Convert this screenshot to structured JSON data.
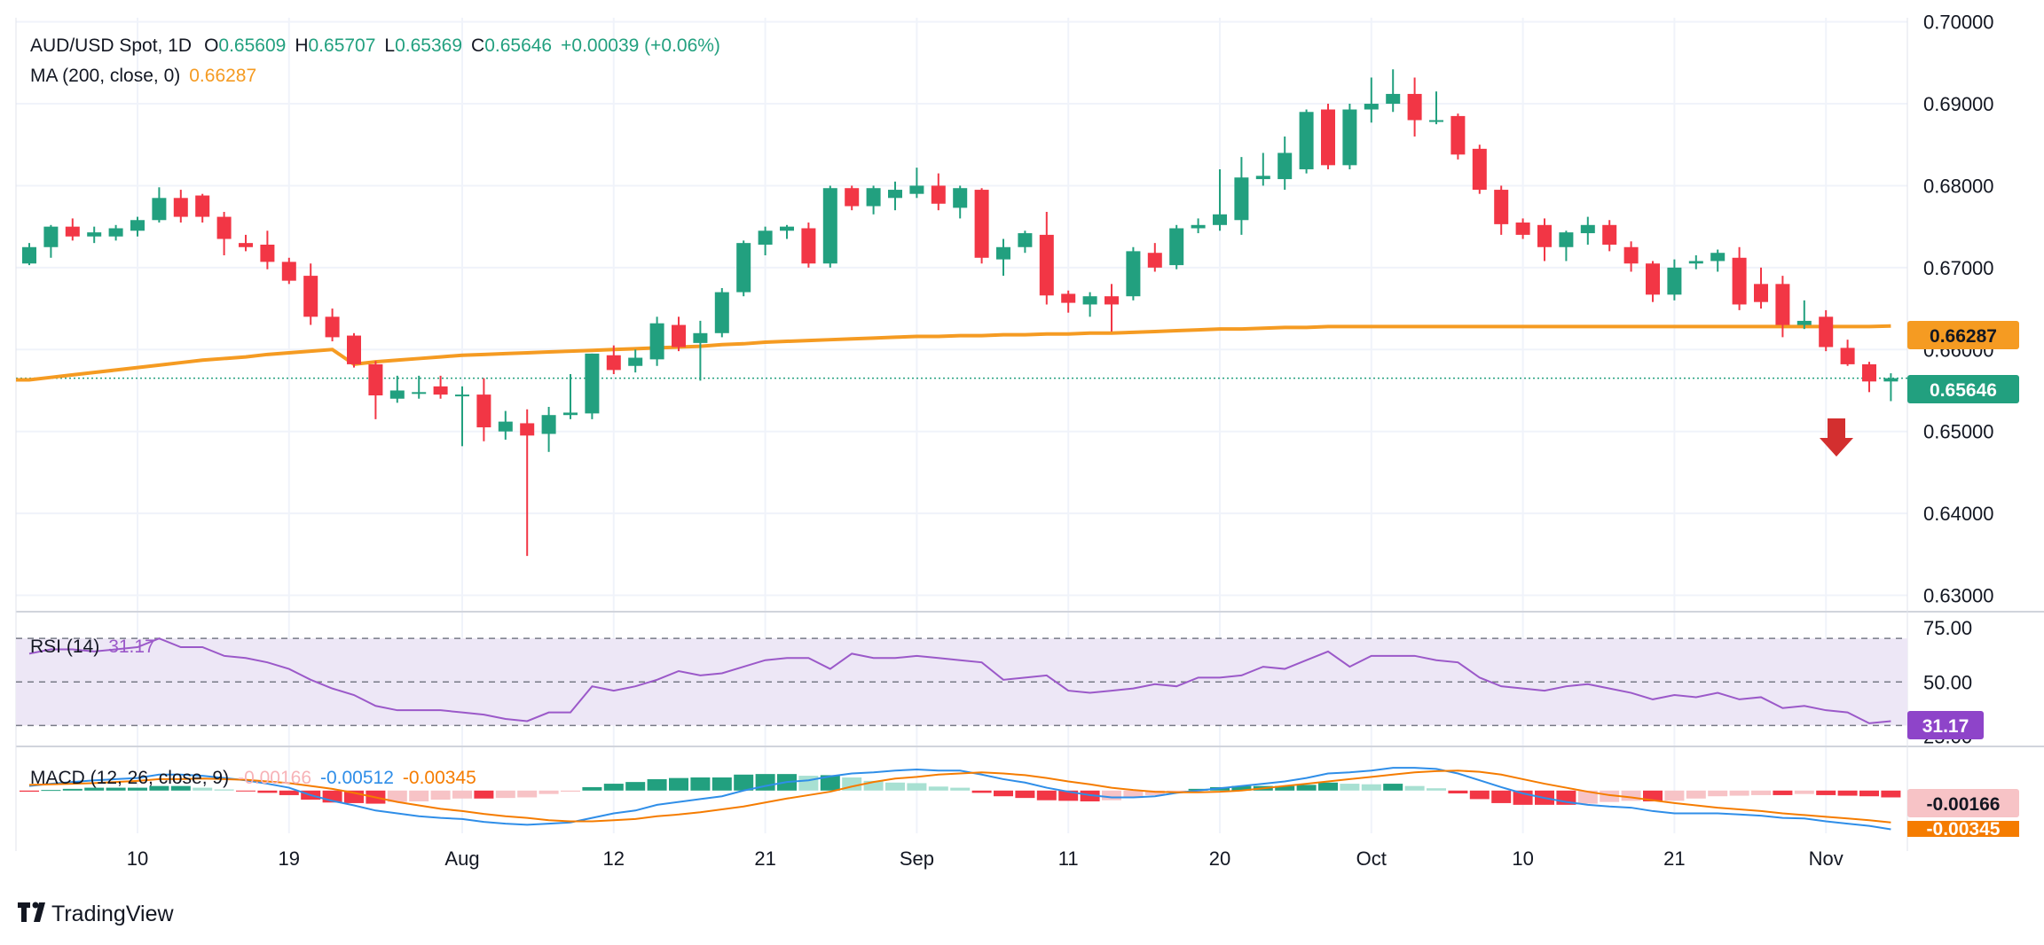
{
  "header": {
    "symbol": "AUD/USD Spot, 1D",
    "o_label": "O",
    "o_value": "0.65609",
    "h_label": "H",
    "h_value": "0.65707",
    "l_label": "L",
    "l_value": "0.65369",
    "c_label": "C",
    "c_value": "0.65646",
    "change": "+0.00039 (+0.06%)",
    "ma_label": "MA (200, close, 0)",
    "ma_value": "0.66287"
  },
  "colors": {
    "up": "#22a07f",
    "down": "#f23645",
    "ma": "#f59b22",
    "rsi": "#9b59c9",
    "rsi_band": "#ede7f6",
    "macd_line": "#2f8ee8",
    "signal_line": "#f57c00",
    "hist_up_strong": "#22a07f",
    "hist_up_weak": "#a8e0d2",
    "hist_down_strong": "#f23645",
    "hist_down_weak": "#f7c3c6",
    "grid": "#f0f3fa",
    "text": "#131722"
  },
  "price_badges": {
    "ma": "0.66287",
    "last": "0.65646"
  },
  "rsi_header": {
    "label": "RSI (14)",
    "value": "31.17"
  },
  "rsi_badge": "31.17",
  "macd_header": {
    "label": "MACD (12, 26, close, 9)",
    "hist": "-0.00166",
    "macd": "-0.00512",
    "signal": "-0.00345"
  },
  "macd_badges": {
    "hist": "-0.00166",
    "signal": "-0.00345"
  },
  "brand": {
    "name": "TradingView"
  },
  "chart_data": [
    {
      "type": "candlestick",
      "title": "AUD/USD Spot, 1D",
      "ylim": [
        0.628,
        0.7005
      ],
      "y_ticks": [
        "0.70000",
        "0.69000",
        "0.68000",
        "0.67000",
        "0.66000",
        "0.65000",
        "0.64000",
        "0.63000"
      ],
      "y_tick_values": [
        0.7,
        0.69,
        0.68,
        0.67,
        0.66,
        0.65,
        0.64,
        0.63
      ],
      "x_ticks": [
        "10",
        "19",
        "Aug",
        "12",
        "21",
        "Sep",
        "11",
        "20",
        "Oct",
        "10",
        "21",
        "Nov"
      ],
      "x_tick_positions": [
        5,
        12,
        20,
        27,
        34,
        41,
        48,
        55,
        62,
        69,
        76,
        83
      ],
      "grid": true,
      "candles": [
        {
          "o": 0.6705,
          "h": 0.673,
          "l": 0.6703,
          "c": 0.6725
        },
        {
          "o": 0.6725,
          "h": 0.6752,
          "l": 0.6712,
          "c": 0.675
        },
        {
          "o": 0.675,
          "h": 0.676,
          "l": 0.6733,
          "c": 0.6738
        },
        {
          "o": 0.6738,
          "h": 0.675,
          "l": 0.673,
          "c": 0.6743
        },
        {
          "o": 0.6738,
          "h": 0.6752,
          "l": 0.6733,
          "c": 0.6748
        },
        {
          "o": 0.6745,
          "h": 0.6762,
          "l": 0.6738,
          "c": 0.6758
        },
        {
          "o": 0.6758,
          "h": 0.6798,
          "l": 0.6755,
          "c": 0.6785
        },
        {
          "o": 0.6785,
          "h": 0.6795,
          "l": 0.6755,
          "c": 0.6762
        },
        {
          "o": 0.6788,
          "h": 0.679,
          "l": 0.6755,
          "c": 0.6762
        },
        {
          "o": 0.6762,
          "h": 0.6768,
          "l": 0.6715,
          "c": 0.6735
        },
        {
          "o": 0.673,
          "h": 0.674,
          "l": 0.672,
          "c": 0.6725
        },
        {
          "o": 0.6728,
          "h": 0.6745,
          "l": 0.6698,
          "c": 0.6707
        },
        {
          "o": 0.6707,
          "h": 0.6712,
          "l": 0.668,
          "c": 0.6684
        },
        {
          "o": 0.669,
          "h": 0.6705,
          "l": 0.663,
          "c": 0.664
        },
        {
          "o": 0.664,
          "h": 0.665,
          "l": 0.661,
          "c": 0.6615
        },
        {
          "o": 0.6617,
          "h": 0.662,
          "l": 0.6578,
          "c": 0.6582
        },
        {
          "o": 0.6582,
          "h": 0.6586,
          "l": 0.6515,
          "c": 0.6544
        },
        {
          "o": 0.654,
          "h": 0.6568,
          "l": 0.6535,
          "c": 0.655
        },
        {
          "o": 0.6548,
          "h": 0.6568,
          "l": 0.654,
          "c": 0.6548
        },
        {
          "o": 0.6555,
          "h": 0.6568,
          "l": 0.654,
          "c": 0.6545
        },
        {
          "o": 0.6545,
          "h": 0.6555,
          "l": 0.6482,
          "c": 0.6545
        },
        {
          "o": 0.6545,
          "h": 0.6565,
          "l": 0.6488,
          "c": 0.6505
        },
        {
          "o": 0.65,
          "h": 0.6525,
          "l": 0.649,
          "c": 0.6512
        },
        {
          "o": 0.651,
          "h": 0.6527,
          "l": 0.6348,
          "c": 0.6495
        },
        {
          "o": 0.6497,
          "h": 0.653,
          "l": 0.6475,
          "c": 0.652
        },
        {
          "o": 0.652,
          "h": 0.657,
          "l": 0.6515,
          "c": 0.6523
        },
        {
          "o": 0.6522,
          "h": 0.6595,
          "l": 0.6515,
          "c": 0.6595
        },
        {
          "o": 0.6593,
          "h": 0.6605,
          "l": 0.657,
          "c": 0.6575
        },
        {
          "o": 0.658,
          "h": 0.66,
          "l": 0.6572,
          "c": 0.659
        },
        {
          "o": 0.6588,
          "h": 0.664,
          "l": 0.658,
          "c": 0.6632
        },
        {
          "o": 0.663,
          "h": 0.664,
          "l": 0.6598,
          "c": 0.6603
        },
        {
          "o": 0.6608,
          "h": 0.6635,
          "l": 0.6562,
          "c": 0.662
        },
        {
          "o": 0.662,
          "h": 0.6675,
          "l": 0.6615,
          "c": 0.667
        },
        {
          "o": 0.667,
          "h": 0.6733,
          "l": 0.6665,
          "c": 0.673
        },
        {
          "o": 0.6728,
          "h": 0.675,
          "l": 0.6715,
          "c": 0.6745
        },
        {
          "o": 0.6745,
          "h": 0.6752,
          "l": 0.6735,
          "c": 0.675
        },
        {
          "o": 0.6748,
          "h": 0.6755,
          "l": 0.67,
          "c": 0.6705
        },
        {
          "o": 0.6705,
          "h": 0.68,
          "l": 0.67,
          "c": 0.6797
        },
        {
          "o": 0.6797,
          "h": 0.68,
          "l": 0.677,
          "c": 0.6775
        },
        {
          "o": 0.6775,
          "h": 0.68,
          "l": 0.6765,
          "c": 0.6797
        },
        {
          "o": 0.6785,
          "h": 0.6805,
          "l": 0.677,
          "c": 0.6795
        },
        {
          "o": 0.679,
          "h": 0.6822,
          "l": 0.6785,
          "c": 0.68
        },
        {
          "o": 0.68,
          "h": 0.6815,
          "l": 0.677,
          "c": 0.6778
        },
        {
          "o": 0.6773,
          "h": 0.68,
          "l": 0.676,
          "c": 0.6797
        },
        {
          "o": 0.6795,
          "h": 0.6797,
          "l": 0.6705,
          "c": 0.6712
        },
        {
          "o": 0.671,
          "h": 0.6735,
          "l": 0.669,
          "c": 0.6725
        },
        {
          "o": 0.6725,
          "h": 0.6745,
          "l": 0.6718,
          "c": 0.6742
        },
        {
          "o": 0.674,
          "h": 0.6768,
          "l": 0.6655,
          "c": 0.6666
        },
        {
          "o": 0.6668,
          "h": 0.6672,
          "l": 0.6645,
          "c": 0.6657
        },
        {
          "o": 0.6655,
          "h": 0.667,
          "l": 0.664,
          "c": 0.6665
        },
        {
          "o": 0.6665,
          "h": 0.668,
          "l": 0.6622,
          "c": 0.6655
        },
        {
          "o": 0.6665,
          "h": 0.6725,
          "l": 0.666,
          "c": 0.672
        },
        {
          "o": 0.6718,
          "h": 0.673,
          "l": 0.6695,
          "c": 0.67
        },
        {
          "o": 0.6703,
          "h": 0.6752,
          "l": 0.6698,
          "c": 0.6748
        },
        {
          "o": 0.6748,
          "h": 0.676,
          "l": 0.6742,
          "c": 0.6752
        },
        {
          "o": 0.6752,
          "h": 0.682,
          "l": 0.6745,
          "c": 0.6765
        },
        {
          "o": 0.6758,
          "h": 0.6835,
          "l": 0.674,
          "c": 0.681
        },
        {
          "o": 0.6808,
          "h": 0.684,
          "l": 0.68,
          "c": 0.6812
        },
        {
          "o": 0.6808,
          "h": 0.686,
          "l": 0.6795,
          "c": 0.684
        },
        {
          "o": 0.682,
          "h": 0.6893,
          "l": 0.6815,
          "c": 0.689
        },
        {
          "o": 0.6893,
          "h": 0.69,
          "l": 0.682,
          "c": 0.6825
        },
        {
          "o": 0.6825,
          "h": 0.69,
          "l": 0.682,
          "c": 0.6893
        },
        {
          "o": 0.6893,
          "h": 0.6932,
          "l": 0.6877,
          "c": 0.69
        },
        {
          "o": 0.69,
          "h": 0.6942,
          "l": 0.689,
          "c": 0.6912
        },
        {
          "o": 0.6912,
          "h": 0.6932,
          "l": 0.686,
          "c": 0.688
        },
        {
          "o": 0.6878,
          "h": 0.6915,
          "l": 0.6875,
          "c": 0.688
        },
        {
          "o": 0.6885,
          "h": 0.6888,
          "l": 0.6832,
          "c": 0.6838
        },
        {
          "o": 0.6845,
          "h": 0.685,
          "l": 0.679,
          "c": 0.6795
        },
        {
          "o": 0.6795,
          "h": 0.68,
          "l": 0.674,
          "c": 0.6753
        },
        {
          "o": 0.6755,
          "h": 0.676,
          "l": 0.6735,
          "c": 0.674
        },
        {
          "o": 0.6752,
          "h": 0.676,
          "l": 0.6708,
          "c": 0.6725
        },
        {
          "o": 0.6725,
          "h": 0.6745,
          "l": 0.6708,
          "c": 0.6743
        },
        {
          "o": 0.6742,
          "h": 0.6762,
          "l": 0.6728,
          "c": 0.6752
        },
        {
          "o": 0.6752,
          "h": 0.6758,
          "l": 0.672,
          "c": 0.6728
        },
        {
          "o": 0.6725,
          "h": 0.6732,
          "l": 0.6695,
          "c": 0.6705
        },
        {
          "o": 0.6705,
          "h": 0.6708,
          "l": 0.6658,
          "c": 0.6667
        },
        {
          "o": 0.6667,
          "h": 0.671,
          "l": 0.666,
          "c": 0.67
        },
        {
          "o": 0.6705,
          "h": 0.6715,
          "l": 0.6698,
          "c": 0.6708
        },
        {
          "o": 0.6708,
          "h": 0.6722,
          "l": 0.6695,
          "c": 0.6718
        },
        {
          "o": 0.6712,
          "h": 0.6725,
          "l": 0.6648,
          "c": 0.6655
        },
        {
          "o": 0.668,
          "h": 0.67,
          "l": 0.665,
          "c": 0.6658
        },
        {
          "o": 0.668,
          "h": 0.669,
          "l": 0.6615,
          "c": 0.663
        },
        {
          "o": 0.663,
          "h": 0.666,
          "l": 0.6625,
          "c": 0.6635
        },
        {
          "o": 0.664,
          "h": 0.6648,
          "l": 0.6598,
          "c": 0.6603
        },
        {
          "o": 0.6602,
          "h": 0.6612,
          "l": 0.658,
          "c": 0.6582
        },
        {
          "o": 0.6582,
          "h": 0.6585,
          "l": 0.6548,
          "c": 0.6561
        },
        {
          "o": 0.6561,
          "h": 0.6571,
          "l": 0.6537,
          "c": 0.6565
        }
      ],
      "ma200": [
        0.6563,
        0.6566,
        0.6569,
        0.6572,
        0.6575,
        0.6578,
        0.6581,
        0.6584,
        0.6587,
        0.6589,
        0.6591,
        0.6594,
        0.6596,
        0.6598,
        0.66,
        0.6582,
        0.6585,
        0.6587,
        0.6589,
        0.6591,
        0.6593,
        0.6594,
        0.6595,
        0.6596,
        0.6597,
        0.6598,
        0.6599,
        0.66,
        0.6601,
        0.6602,
        0.6603,
        0.6604,
        0.6606,
        0.6607,
        0.6609,
        0.661,
        0.6611,
        0.6612,
        0.6613,
        0.6614,
        0.6615,
        0.6616,
        0.6616,
        0.6617,
        0.6617,
        0.6618,
        0.6618,
        0.6619,
        0.6619,
        0.662,
        0.662,
        0.6621,
        0.6622,
        0.6623,
        0.6624,
        0.6625,
        0.6625,
        0.6626,
        0.6627,
        0.6627,
        0.6628,
        0.6628,
        0.6628,
        0.6628,
        0.6628,
        0.6628,
        0.6628,
        0.6628,
        0.6628,
        0.6628,
        0.6628,
        0.6628,
        0.6628,
        0.6628,
        0.6628,
        0.6628,
        0.6628,
        0.6628,
        0.6628,
        0.6628,
        0.6628,
        0.6628,
        0.6628,
        0.6628,
        0.6628,
        0.6628,
        0.66287
      ]
    },
    {
      "type": "line",
      "title": "RSI (14)",
      "ylim": [
        22,
        77
      ],
      "y_ticks": [
        "75.00",
        "50.00",
        "25.00"
      ],
      "y_tick_values": [
        75,
        50,
        25
      ],
      "bands": [
        70,
        50,
        30
      ],
      "values": [
        63,
        65,
        65,
        64,
        65,
        66,
        70,
        66,
        66,
        62,
        61,
        59,
        56,
        51,
        47,
        44,
        39,
        37,
        37,
        37,
        36,
        35,
        33,
        32,
        36,
        36,
        48,
        46,
        48,
        51,
        55,
        53,
        54,
        57,
        60,
        61,
        61,
        56,
        63,
        61,
        61,
        62,
        61,
        60,
        59,
        51,
        52,
        53,
        46,
        45,
        46,
        47,
        49,
        48,
        52,
        52,
        53,
        57,
        56,
        60,
        64,
        57,
        62,
        62,
        62,
        60,
        59,
        52,
        48,
        47,
        46,
        48,
        49,
        47,
        45,
        42,
        44,
        43,
        45,
        42,
        43,
        38,
        39,
        37,
        36,
        31,
        32
      ]
    },
    {
      "type": "line",
      "title": "MACD (12, 26, close, 9)",
      "ylim": [
        -0.0075,
        0.0065
      ],
      "macd": [
        0.0008,
        0.0012,
        0.0015,
        0.0018,
        0.002,
        0.0022,
        0.0028,
        0.0028,
        0.0026,
        0.0022,
        0.0018,
        0.0012,
        0.0005,
        -0.0008,
        -0.0018,
        -0.0026,
        -0.0035,
        -0.004,
        -0.0045,
        -0.0048,
        -0.005,
        -0.0055,
        -0.0058,
        -0.006,
        -0.0058,
        -0.0056,
        -0.0048,
        -0.004,
        -0.0035,
        -0.0025,
        -0.002,
        -0.0015,
        -0.001,
        0.0,
        0.0008,
        0.0015,
        0.0018,
        0.0025,
        0.003,
        0.0032,
        0.0035,
        0.0037,
        0.0035,
        0.0035,
        0.0028,
        0.002,
        0.0014,
        0.0005,
        -0.0002,
        -0.0008,
        -0.0012,
        -0.0012,
        -0.001,
        -0.0004,
        0.0,
        0.0004,
        0.0008,
        0.0012,
        0.0016,
        0.0022,
        0.003,
        0.0032,
        0.0035,
        0.004,
        0.004,
        0.0038,
        0.003,
        0.0018,
        0.0006,
        -0.0005,
        -0.0013,
        -0.002,
        -0.0025,
        -0.0028,
        -0.003,
        -0.0036,
        -0.004,
        -0.004,
        -0.004,
        -0.0042,
        -0.0044,
        -0.0048,
        -0.0049,
        -0.0054,
        -0.0058,
        -0.0062,
        -0.0068
      ],
      "signal": [
        0.001,
        0.0011,
        0.0012,
        0.0013,
        0.0015,
        0.0017,
        0.002,
        0.002,
        0.0021,
        0.002,
        0.0019,
        0.0016,
        0.0013,
        0.0008,
        0.0003,
        -0.0004,
        -0.0012,
        -0.002,
        -0.0026,
        -0.0032,
        -0.0036,
        -0.0041,
        -0.0045,
        -0.0048,
        -0.0052,
        -0.0054,
        -0.0054,
        -0.0052,
        -0.005,
        -0.0045,
        -0.0042,
        -0.0038,
        -0.0033,
        -0.0028,
        -0.0021,
        -0.0014,
        -0.0008,
        -0.0002,
        0.0007,
        0.0015,
        0.0021,
        0.0024,
        0.0028,
        0.003,
        0.0032,
        0.003,
        0.0027,
        0.0022,
        0.0016,
        0.0011,
        0.0005,
        0.0001,
        -0.0002,
        -0.0003,
        -0.0003,
        -0.0002,
        0.0,
        0.0004,
        0.0008,
        0.0012,
        0.0016,
        0.002,
        0.0024,
        0.0028,
        0.0032,
        0.0034,
        0.0035,
        0.0033,
        0.0028,
        0.002,
        0.0012,
        0.0005,
        -0.0002,
        -0.0008,
        -0.0012,
        -0.0017,
        -0.0022,
        -0.0026,
        -0.003,
        -0.0033,
        -0.0036,
        -0.004,
        -0.0043,
        -0.0046,
        -0.0049,
        -0.0052,
        -0.0056
      ],
      "histogram": [
        -0.0002,
        0.0001,
        0.0003,
        0.0005,
        0.0005,
        0.0005,
        0.0008,
        0.0008,
        0.0005,
        0.0002,
        -0.0001,
        -0.0004,
        -0.0008,
        -0.0016,
        -0.0021,
        -0.0022,
        -0.0023,
        -0.002,
        -0.0019,
        -0.0016,
        -0.0014,
        -0.0014,
        -0.0013,
        -0.0012,
        -0.0006,
        -0.0002,
        0.0006,
        0.0012,
        0.0015,
        0.002,
        0.0022,
        0.0023,
        0.0023,
        0.0028,
        0.0029,
        0.0029,
        0.0026,
        0.0027,
        0.0023,
        0.0017,
        0.0014,
        0.0013,
        0.0007,
        0.0005,
        -0.0004,
        -0.001,
        -0.0013,
        -0.0017,
        -0.0018,
        -0.0019,
        -0.0017,
        -0.0013,
        -0.0008,
        -0.0001,
        0.0003,
        0.0006,
        0.0008,
        0.0008,
        0.0008,
        0.001,
        0.0014,
        0.0012,
        0.0011,
        0.0012,
        0.0008,
        0.0004,
        -0.0005,
        -0.0015,
        -0.0022,
        -0.0025,
        -0.0025,
        -0.0025,
        -0.0023,
        -0.002,
        -0.0018,
        -0.0019,
        -0.0018,
        -0.0014,
        -0.001,
        -0.0009,
        -0.0008,
        -0.0008,
        -0.0006,
        -0.0008,
        -0.0009,
        -0.001,
        -0.0012
      ]
    }
  ]
}
